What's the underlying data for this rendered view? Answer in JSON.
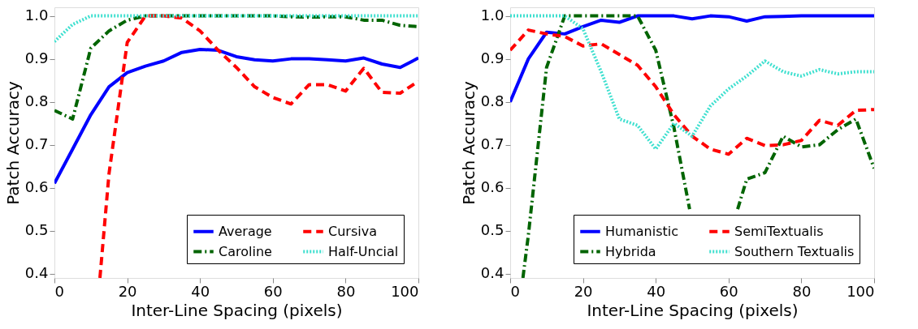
{
  "chart_data": [
    {
      "type": "line",
      "xlabel": "Inter-Line Spacing (pixels)",
      "ylabel": "Patch Accuracy",
      "x": [
        0,
        5,
        10,
        15,
        20,
        25,
        30,
        35,
        40,
        45,
        50,
        55,
        60,
        65,
        70,
        75,
        80,
        85,
        90,
        95,
        100
      ],
      "xlim": [
        0,
        100
      ],
      "xticks": [
        0,
        20,
        40,
        60,
        80,
        100
      ],
      "ylim": [
        0.39,
        1.02
      ],
      "yticks": [
        {
          "value": 0.4,
          "label": "0.4"
        },
        {
          "value": 0.5,
          "label": "0.5"
        },
        {
          "value": 0.6,
          "label": "0.6"
        },
        {
          "value": 0.7,
          "label": "0.7"
        },
        {
          "value": 0.8,
          "label": "0.8"
        },
        {
          "value": 0.9,
          "label": "0.9"
        },
        {
          "value": 1.0,
          "label": "1.0"
        }
      ],
      "grid": false,
      "legend": "bottom right",
      "series": [
        {
          "name": "Average",
          "color": "#0000ff",
          "line_style": "solid",
          "values": [
            0.61,
            0.69,
            0.77,
            0.835,
            0.868,
            0.883,
            0.895,
            0.915,
            0.922,
            0.92,
            0.905,
            0.898,
            0.895,
            0.9,
            0.9,
            0.898,
            0.895,
            0.902,
            0.888,
            0.88,
            0.902
          ]
        },
        {
          "name": "Caroline",
          "color": "#006400",
          "line_style": "dashdot",
          "values": [
            0.78,
            0.76,
            0.925,
            0.965,
            0.99,
            1.0,
            1.0,
            1.0,
            1.0,
            1.0,
            1.0,
            1.0,
            1.0,
            0.998,
            0.997,
            0.998,
            0.998,
            0.99,
            0.99,
            0.978,
            0.975
          ]
        },
        {
          "name": "Cursiva",
          "color": "#ff0000",
          "line_style": "dashed",
          "x": [
            12.5,
            15,
            20,
            25,
            30,
            35,
            40,
            45,
            50,
            55,
            60,
            65,
            70,
            75,
            80,
            85,
            90,
            95,
            100
          ],
          "values": [
            0.39,
            0.633,
            0.938,
            1.0,
            1.0,
            0.995,
            0.965,
            0.92,
            0.88,
            0.835,
            0.81,
            0.795,
            0.84,
            0.84,
            0.825,
            0.878,
            0.822,
            0.82,
            0.848
          ]
        },
        {
          "name": "Half-Uncial",
          "color": "#40e0d0",
          "line_style": "dotted",
          "values": [
            0.94,
            0.98,
            1.0,
            1.0,
            1.0,
            1.0,
            1.0,
            1.0,
            1.0,
            1.0,
            1.0,
            1.0,
            1.0,
            1.0,
            1.0,
            1.0,
            1.0,
            1.0,
            1.0,
            1.0,
            1.0
          ]
        }
      ]
    },
    {
      "type": "line",
      "xlabel": "Inter-Line Spacing (pixels)",
      "ylabel": "Patch Accuracy",
      "x": [
        0,
        5,
        10,
        15,
        20,
        25,
        30,
        35,
        40,
        45,
        50,
        55,
        60,
        65,
        70,
        75,
        80,
        85,
        90,
        95,
        100
      ],
      "xlim": [
        0,
        100
      ],
      "xticks": [
        0,
        20,
        40,
        60,
        80,
        100
      ],
      "ylim": [
        0.39,
        1.02
      ],
      "yticks": [
        {
          "value": 0.4,
          "label": "0.4"
        },
        {
          "value": 0.5,
          "label": "0.5"
        },
        {
          "value": 0.6,
          "label": "0.6"
        },
        {
          "value": 0.7,
          "label": "0.7"
        },
        {
          "value": 0.8,
          "label": "0.8"
        },
        {
          "value": 0.9,
          "label": "0.9"
        },
        {
          "value": 1.0,
          "label": "1.0"
        }
      ],
      "grid": false,
      "legend": "bottom right",
      "series": [
        {
          "name": "Humanistic",
          "color": "#0000ff",
          "line_style": "solid",
          "values": [
            0.8,
            0.9,
            0.962,
            0.958,
            0.975,
            0.99,
            0.985,
            1.0,
            1.0,
            1.0,
            0.993,
            1.0,
            0.998,
            0.988,
            0.998,
            0.999,
            1.0,
            1.0,
            1.0,
            1.0,
            1.0
          ]
        },
        {
          "name": "Hybrida",
          "color": "#006400",
          "line_style": "dashdot",
          "x": [
            3.5,
            5,
            10,
            15,
            20,
            25,
            30,
            35,
            40,
            45,
            49.3,
            51,
            55,
            59,
            62.5,
            65,
            70,
            75,
            80,
            85,
            90,
            95,
            100
          ],
          "values": [
            0.39,
            0.49,
            0.88,
            1.0,
            1.0,
            1.0,
            1.0,
            1.0,
            0.92,
            0.74,
            0.55,
            null,
            null,
            null,
            0.55,
            0.62,
            0.635,
            0.72,
            0.695,
            0.7,
            0.735,
            0.76,
            0.645
          ]
        },
        {
          "name": "SemiTextualis",
          "color": "#ff0000",
          "line_style": "dashed",
          "values": [
            0.92,
            0.967,
            0.958,
            0.952,
            0.93,
            0.935,
            0.91,
            0.885,
            0.835,
            0.77,
            0.72,
            0.69,
            0.678,
            0.715,
            0.698,
            0.7,
            0.71,
            0.757,
            0.745,
            0.78,
            0.782
          ]
        },
        {
          "name": "Southern Textualis",
          "color": "#40e0d0",
          "line_style": "dotted",
          "values": [
            1.0,
            1.0,
            1.0,
            1.0,
            0.97,
            0.87,
            0.76,
            0.745,
            0.69,
            0.75,
            0.72,
            0.79,
            0.83,
            0.86,
            0.895,
            0.87,
            0.86,
            0.875,
            0.865,
            0.87,
            0.87
          ]
        }
      ]
    }
  ]
}
